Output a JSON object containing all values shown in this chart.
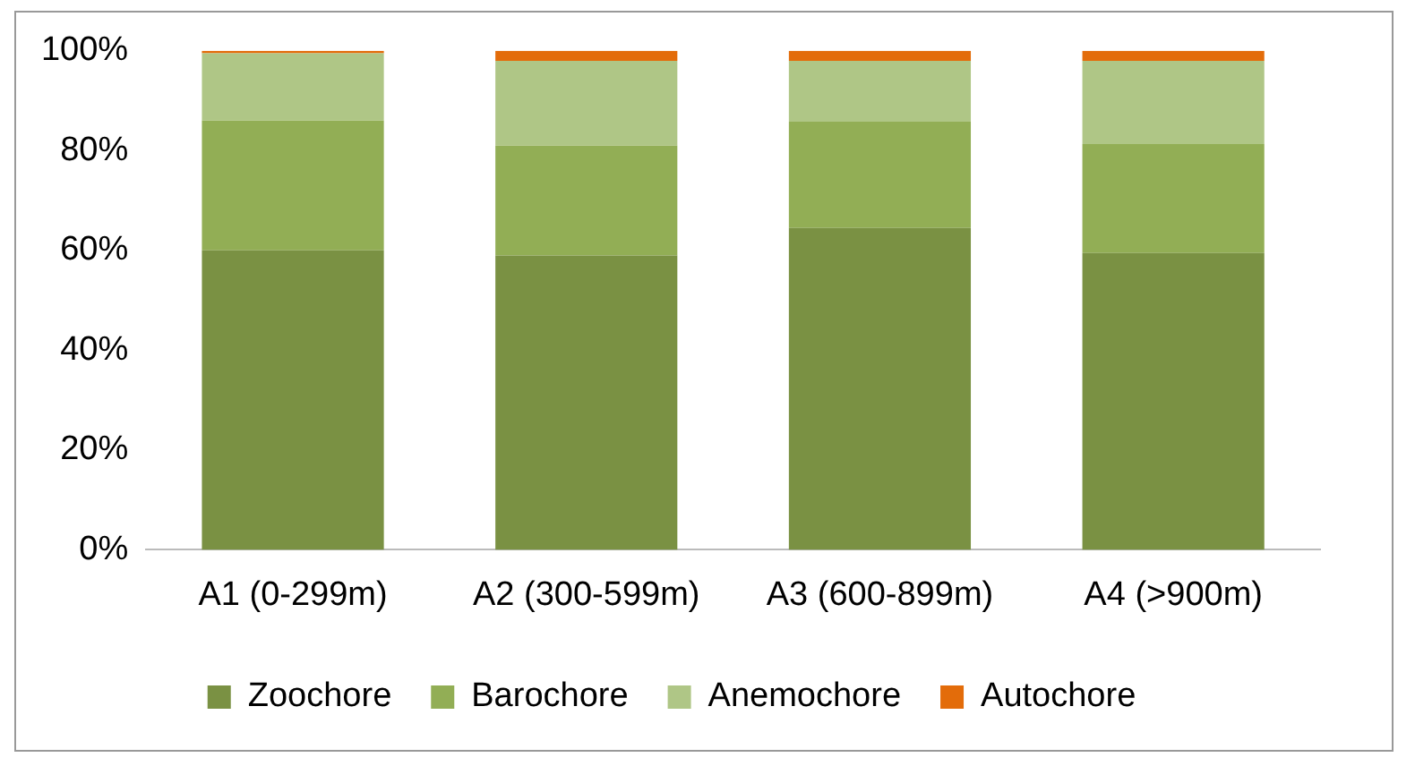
{
  "chart_data": {
    "type": "bar",
    "stacked": true,
    "categories": [
      "A1 (0-299m)",
      "A2 (300-599m)",
      "A3 (600-899m)",
      "A4 (>900m)"
    ],
    "series": [
      {
        "name": "Zoochore",
        "color": "#7a9143",
        "values": [
          60,
          59,
          64.5,
          59.5
        ]
      },
      {
        "name": "Barochore",
        "color": "#92ae55",
        "values": [
          26,
          22,
          21.3,
          21.8
        ]
      },
      {
        "name": "Anemochore",
        "color": "#afc686",
        "values": [
          13.5,
          17,
          12.2,
          16.7
        ]
      },
      {
        "name": "Autochore",
        "color": "#e36c0a",
        "values": [
          0.5,
          2,
          2,
          2
        ]
      }
    ],
    "ylim": [
      0,
      100
    ],
    "yticks": [
      {
        "value": 0,
        "label": "0%"
      },
      {
        "value": 20,
        "label": "20%"
      },
      {
        "value": 40,
        "label": "40%"
      },
      {
        "value": 60,
        "label": "60%"
      },
      {
        "value": 80,
        "label": "80%"
      },
      {
        "value": 100,
        "label": "100%"
      }
    ],
    "grid": false,
    "legend": "bottom"
  }
}
